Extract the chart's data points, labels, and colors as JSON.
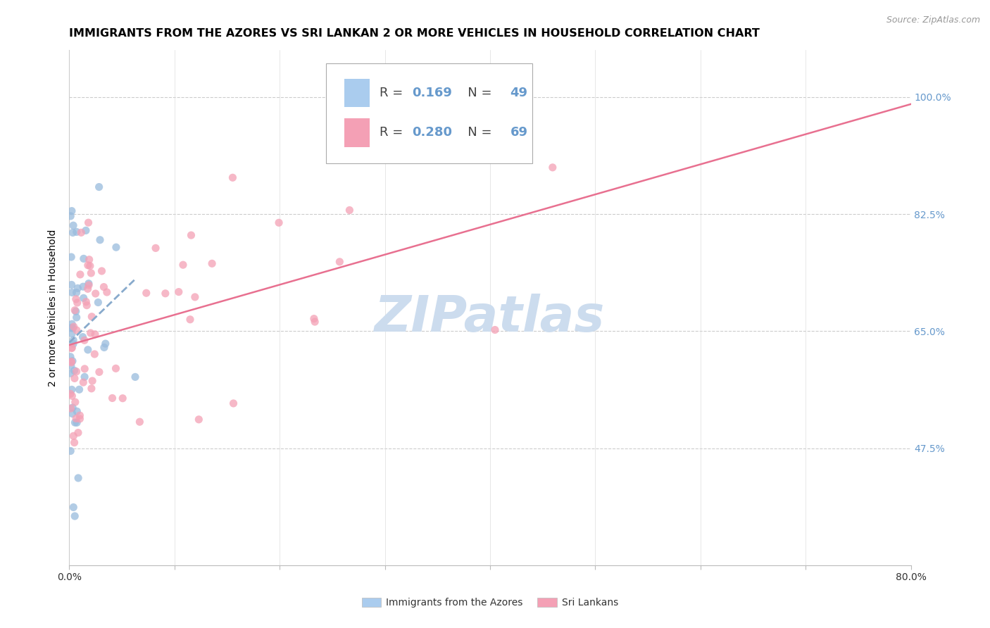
{
  "title": "IMMIGRANTS FROM THE AZORES VS SRI LANKAN 2 OR MORE VEHICLES IN HOUSEHOLD CORRELATION CHART",
  "source": "Source: ZipAtlas.com",
  "ylabel": "2 or more Vehicles in Household",
  "xlim": [
    0.0,
    0.8
  ],
  "ylim": [
    0.3,
    1.07
  ],
  "xticks": [
    0.0,
    0.1,
    0.2,
    0.3,
    0.4,
    0.5,
    0.6,
    0.7,
    0.8
  ],
  "xticklabels": [
    "0.0%",
    "",
    "",
    "",
    "",
    "",
    "",
    "",
    "80.0%"
  ],
  "ytick_values": [
    0.475,
    0.65,
    0.825,
    1.0
  ],
  "ytick_labels": [
    "47.5%",
    "65.0%",
    "82.5%",
    "100.0%"
  ],
  "legend_entries": [
    {
      "label": "Immigrants from the Azores",
      "R": "0.169",
      "N": "49"
    },
    {
      "label": "Sri Lankans",
      "R": "0.280",
      "N": "69"
    }
  ],
  "watermark": "ZIPatlas",
  "blue_line_color": "#88aacc",
  "pink_line_color": "#e87090",
  "blue_dot_color": "#99bbdd",
  "pink_dot_color": "#f4a0b5",
  "blue_legend_color": "#aaccee",
  "pink_legend_color": "#f4a0b5",
  "title_fontsize": 11.5,
  "axis_label_fontsize": 10,
  "tick_label_fontsize": 10,
  "legend_fontsize": 13,
  "watermark_fontsize": 52,
  "watermark_color": "#ccdcee",
  "ytick_label_color": "#6699cc",
  "source_color": "#999999",
  "rn_color": "#6699cc"
}
